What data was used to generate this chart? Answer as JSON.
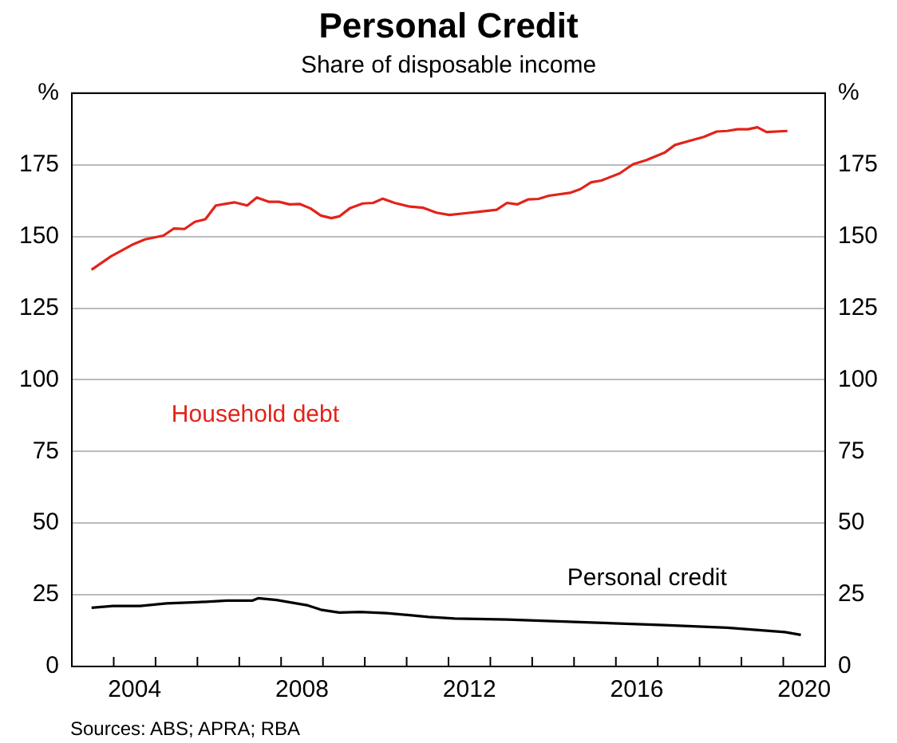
{
  "chart_data": {
    "type": "line",
    "title": "Personal Credit",
    "subtitle": "Share of disposable income",
    "annotations": [
      "Sources: ABS; APRA; RBA"
    ],
    "xlim": [
      2003,
      2021
    ],
    "xticks": [
      {
        "value": 2003,
        "label": null
      },
      {
        "value": 2004,
        "label": null
      },
      {
        "value": 2004.5,
        "label": "2004"
      },
      {
        "value": 2005,
        "label": null
      },
      {
        "value": 2006,
        "label": null
      },
      {
        "value": 2007,
        "label": null
      },
      {
        "value": 2008,
        "label": null
      },
      {
        "value": 2008.5,
        "label": "2008"
      },
      {
        "value": 2009,
        "label": null
      },
      {
        "value": 2010,
        "label": null
      },
      {
        "value": 2011,
        "label": null
      },
      {
        "value": 2012,
        "label": null
      },
      {
        "value": 2012.5,
        "label": "2012"
      },
      {
        "value": 2013,
        "label": null
      },
      {
        "value": 2014,
        "label": null
      },
      {
        "value": 2015,
        "label": null
      },
      {
        "value": 2016,
        "label": null
      },
      {
        "value": 2016.5,
        "label": "2016"
      },
      {
        "value": 2017,
        "label": null
      },
      {
        "value": 2018,
        "label": null
      },
      {
        "value": 2019,
        "label": null
      },
      {
        "value": 2020,
        "label": null
      },
      {
        "value": 2020.5,
        "label": "2020"
      },
      {
        "value": 2021,
        "label": null
      }
    ],
    "ylim": [
      0,
      200
    ],
    "yticks": [
      0,
      25,
      50,
      75,
      100,
      125,
      150,
      175,
      {
        "value": 200,
        "label": "%"
      }
    ],
    "y2lim": [
      0,
      200
    ],
    "y2ticks": [
      0,
      25,
      50,
      75,
      100,
      125,
      150,
      175,
      {
        "value": 200,
        "label": "%"
      }
    ],
    "grid": "y",
    "legend": false,
    "marker": "none",
    "line_style": "solid",
    "series": [
      {
        "name": "Household debt",
        "color": "#e2231a",
        "x": [
          2003.47,
          2003.94,
          2004.44,
          2004.75,
          2005.19,
          2005.44,
          2005.69,
          2005.94,
          2006.19,
          2006.44,
          2006.88,
          2007.19,
          2007.42,
          2007.7,
          2007.95,
          2008.2,
          2008.45,
          2008.7,
          2008.95,
          2009.2,
          2009.39,
          2009.64,
          2009.95,
          2010.2,
          2010.43,
          2010.71,
          2011.08,
          2011.4,
          2011.71,
          2012.02,
          2012.4,
          2012.77,
          2013.15,
          2013.4,
          2013.65,
          2013.9,
          2014.15,
          2014.4,
          2014.9,
          2015.15,
          2015.41,
          2015.65,
          2016.09,
          2016.41,
          2016.72,
          2017.16,
          2017.41,
          2017.72,
          2018.1,
          2018.41,
          2018.66,
          2018.91,
          2019.16,
          2019.38,
          2019.6,
          2020.1
        ],
        "values": [
          138.4,
          143.1,
          147.1,
          149,
          150.3,
          152.8,
          152.6,
          155.1,
          156,
          160.8,
          161.9,
          160.8,
          163.6,
          162.1,
          162.1,
          161.2,
          161.3,
          159.8,
          157.3,
          156.4,
          157,
          159.8,
          161.5,
          161.7,
          163.2,
          161.7,
          160.4,
          160,
          158.3,
          157.5,
          158.1,
          158.7,
          159.3,
          161.7,
          161.2,
          162.9,
          163.1,
          164.2,
          165.2,
          166.5,
          168.9,
          169.5,
          172,
          175.2,
          176.6,
          179.2,
          181.9,
          183.2,
          184.7,
          186.6,
          186.8,
          187.4,
          187.4,
          188.1,
          186.4,
          186.8
        ]
      },
      {
        "name": "Personal credit",
        "color": "#000000",
        "x": [
          2003.47,
          2003.98,
          2004.63,
          2005.26,
          2006,
          2006.7,
          2007.32,
          2007.45,
          2007.89,
          2008.64,
          2008.95,
          2009.39,
          2009.89,
          2010.52,
          2011.52,
          2012.15,
          2013.4,
          2015.28,
          2017.16,
          2018.66,
          2020.04,
          2020.42
        ],
        "values": [
          20.5,
          21.1,
          21.1,
          22,
          22.4,
          23,
          23,
          23.8,
          23.2,
          21.3,
          19.8,
          18.8,
          19,
          18.6,
          17.3,
          16.7,
          16.4,
          15.4,
          14.4,
          13.5,
          12,
          11
        ]
      }
    ]
  }
}
